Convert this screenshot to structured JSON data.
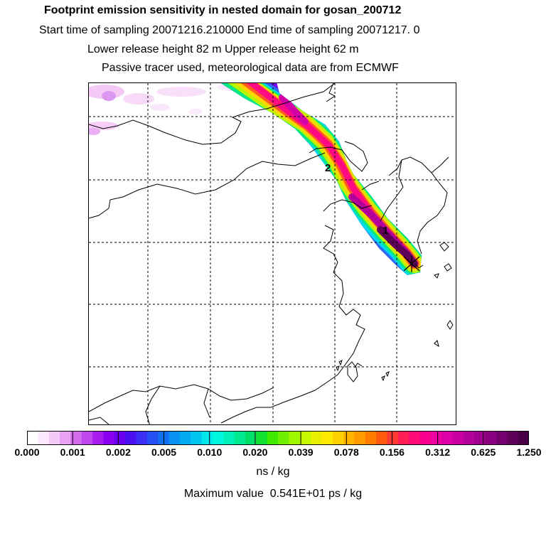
{
  "header": {
    "title": "Footprint emission sensitivity in nested domain for gosan_200712",
    "sampling": "Start time of sampling 20071216.210000      End time of sampling 20071217.     0",
    "release_height": "Lower release height   82 m          Upper release height   62 m",
    "tracer": "Passive tracer used, meteorological data are from ECMWF"
  },
  "map": {
    "point_labels": [
      "2",
      "1"
    ],
    "release_site_marker": "cross"
  },
  "colorbar": {
    "tick_labels": [
      "0.000",
      "0.001",
      "0.002",
      "0.005",
      "0.010",
      "0.020",
      "0.039",
      "0.078",
      "0.156",
      "0.312",
      "0.625",
      "1.250"
    ],
    "colors": [
      "#ffffff",
      "#fde8fd",
      "#f6c8f8",
      "#eaa2f4",
      "#d56cef",
      "#c046ef",
      "#a81cee",
      "#8c00f0",
      "#6a00f2",
      "#4b10f2",
      "#3b30f3",
      "#2450f3",
      "#1070f2",
      "#0a90f0",
      "#06aaf0",
      "#00c6f2",
      "#00e6ee",
      "#00f8e0",
      "#00f0b8",
      "#00e890",
      "#00e068",
      "#10e030",
      "#40e800",
      "#70f000",
      "#a0f800",
      "#c8f800",
      "#e8f000",
      "#ffe800",
      "#ffd000",
      "#ffb400",
      "#ff9a00",
      "#ff7a00",
      "#ff5a10",
      "#ff3a30",
      "#ff1f55",
      "#ff0a78",
      "#f80090",
      "#ec00a0",
      "#dc00a8",
      "#c800a4",
      "#b4009a",
      "#a00090",
      "#8a0080",
      "#740070",
      "#5e005a",
      "#4a0048"
    ],
    "unit": "ns / kg",
    "max_value": "Maximum value  0.541E+01 ps / kg"
  }
}
